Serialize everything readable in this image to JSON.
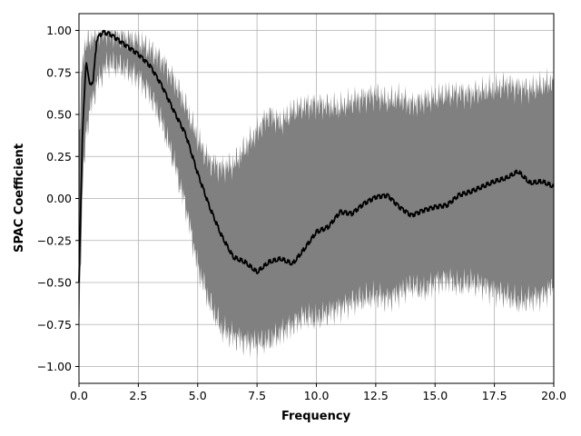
{
  "chart_data": {
    "type": "area",
    "title": "",
    "xlabel": "Frequency",
    "ylabel": "SPAC Coefficient",
    "xlim": [
      0,
      20
    ],
    "ylim": [
      -1.1,
      1.1
    ],
    "xticks": [
      0.0,
      2.5,
      5.0,
      7.5,
      10.0,
      12.5,
      15.0,
      17.5,
      20.0
    ],
    "xtick_labels": [
      "0.0",
      "2.5",
      "5.0",
      "7.5",
      "10.0",
      "12.5",
      "15.0",
      "17.5",
      "20.0"
    ],
    "yticks": [
      -1.0,
      -0.75,
      -0.5,
      -0.25,
      0.0,
      0.25,
      0.5,
      0.75,
      1.0
    ],
    "ytick_labels": [
      "−1.00",
      "−0.75",
      "−0.50",
      "−0.25",
      "0.00",
      "0.25",
      "0.50",
      "0.75",
      "1.00"
    ],
    "grid": true,
    "legend": "none",
    "band_color": "#808080",
    "line_color": "#000000",
    "series": [
      {
        "kind": "band",
        "x": [
          0.0,
          0.15,
          0.3,
          0.5,
          0.8,
          1.2,
          1.8,
          2.5,
          3.0,
          3.5,
          4.0,
          4.5,
          5.0,
          5.5,
          6.0,
          6.5,
          7.0,
          7.5,
          8.0,
          8.5,
          9.0,
          9.5,
          10.0,
          10.5,
          11.0,
          11.5,
          12.0,
          12.5,
          13.0,
          13.5,
          14.0,
          14.5,
          15.0,
          15.5,
          16.0,
          16.5,
          17.0,
          17.5,
          18.0,
          18.5,
          19.0,
          19.5,
          20.0
        ],
        "upper": [
          0.3,
          0.85,
          0.92,
          0.95,
          0.98,
          0.99,
          0.97,
          0.94,
          0.88,
          0.82,
          0.7,
          0.55,
          0.35,
          0.22,
          0.18,
          0.2,
          0.3,
          0.4,
          0.5,
          0.45,
          0.52,
          0.55,
          0.56,
          0.55,
          0.54,
          0.58,
          0.6,
          0.62,
          0.58,
          0.6,
          0.56,
          0.58,
          0.6,
          0.62,
          0.63,
          0.62,
          0.64,
          0.65,
          0.68,
          0.66,
          0.65,
          0.67,
          0.7
        ],
        "lower": [
          -0.8,
          0.05,
          0.4,
          0.55,
          0.7,
          0.8,
          0.78,
          0.72,
          0.62,
          0.45,
          0.22,
          -0.05,
          -0.4,
          -0.62,
          -0.78,
          -0.82,
          -0.85,
          -0.86,
          -0.85,
          -0.8,
          -0.75,
          -0.7,
          -0.72,
          -0.68,
          -0.65,
          -0.62,
          -0.6,
          -0.58,
          -0.6,
          -0.56,
          -0.52,
          -0.55,
          -0.5,
          -0.48,
          -0.52,
          -0.5,
          -0.52,
          -0.55,
          -0.58,
          -0.62,
          -0.6,
          -0.58,
          -0.52
        ]
      },
      {
        "kind": "line",
        "x": [
          0.0,
          0.15,
          0.3,
          0.45,
          0.6,
          0.75,
          1.0,
          1.3,
          1.6,
          2.0,
          2.5,
          3.0,
          3.5,
          4.0,
          4.5,
          5.0,
          5.5,
          6.0,
          6.5,
          7.0,
          7.5,
          8.0,
          8.5,
          9.0,
          9.5,
          10.0,
          10.5,
          11.0,
          11.5,
          12.0,
          12.5,
          13.0,
          13.5,
          14.0,
          14.5,
          15.0,
          15.5,
          16.0,
          16.5,
          17.0,
          17.5,
          18.0,
          18.5,
          19.0,
          19.5,
          20.0
        ],
        "y": [
          -0.5,
          0.4,
          0.82,
          0.68,
          0.7,
          0.95,
          0.99,
          0.98,
          0.95,
          0.91,
          0.86,
          0.79,
          0.67,
          0.52,
          0.38,
          0.15,
          -0.05,
          -0.22,
          -0.35,
          -0.38,
          -0.44,
          -0.38,
          -0.36,
          -0.39,
          -0.3,
          -0.2,
          -0.17,
          -0.08,
          -0.09,
          -0.03,
          0.01,
          0.02,
          -0.05,
          -0.1,
          -0.07,
          -0.05,
          -0.04,
          0.02,
          0.04,
          0.07,
          0.1,
          0.12,
          0.16,
          0.09,
          0.1,
          0.07
        ]
      }
    ]
  }
}
